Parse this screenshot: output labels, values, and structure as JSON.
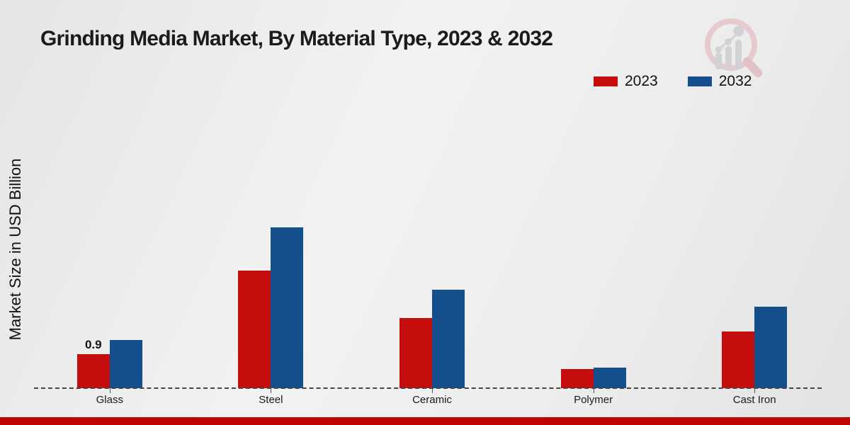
{
  "title": "Grinding Media Market, By Material Type, 2023 & 2032",
  "ylabel": "Market Size in USD Billion",
  "legend": {
    "items": [
      {
        "label": "2023",
        "color": "#c60d0d"
      },
      {
        "label": "2032",
        "color": "#134f8d"
      }
    ]
  },
  "chart_data": {
    "type": "bar",
    "title": "Grinding Media Market, By Material Type, 2023 & 2032",
    "xlabel": "",
    "ylabel": "Market Size in USD Billion",
    "categories": [
      "Glass",
      "Steel",
      "Ceramic",
      "Polymer",
      "Cast Iron"
    ],
    "series": [
      {
        "name": "2023",
        "color": "#c60d0d",
        "values": [
          0.9,
          3.1,
          1.85,
          0.5,
          1.5
        ]
      },
      {
        "name": "2032",
        "color": "#134f8d",
        "values": [
          1.28,
          4.25,
          2.6,
          0.55,
          2.15
        ]
      }
    ],
    "data_labels": [
      {
        "category": "Glass",
        "series": "2023",
        "text": "0.9"
      }
    ],
    "ylim": [
      0,
      4.6
    ],
    "grid": false,
    "legend_position": "top-right",
    "baseline_style": "dashed"
  },
  "logo": {
    "name": "magnifier-bar-chart-watermark"
  },
  "footer": {
    "bar_color": "#c00505"
  }
}
